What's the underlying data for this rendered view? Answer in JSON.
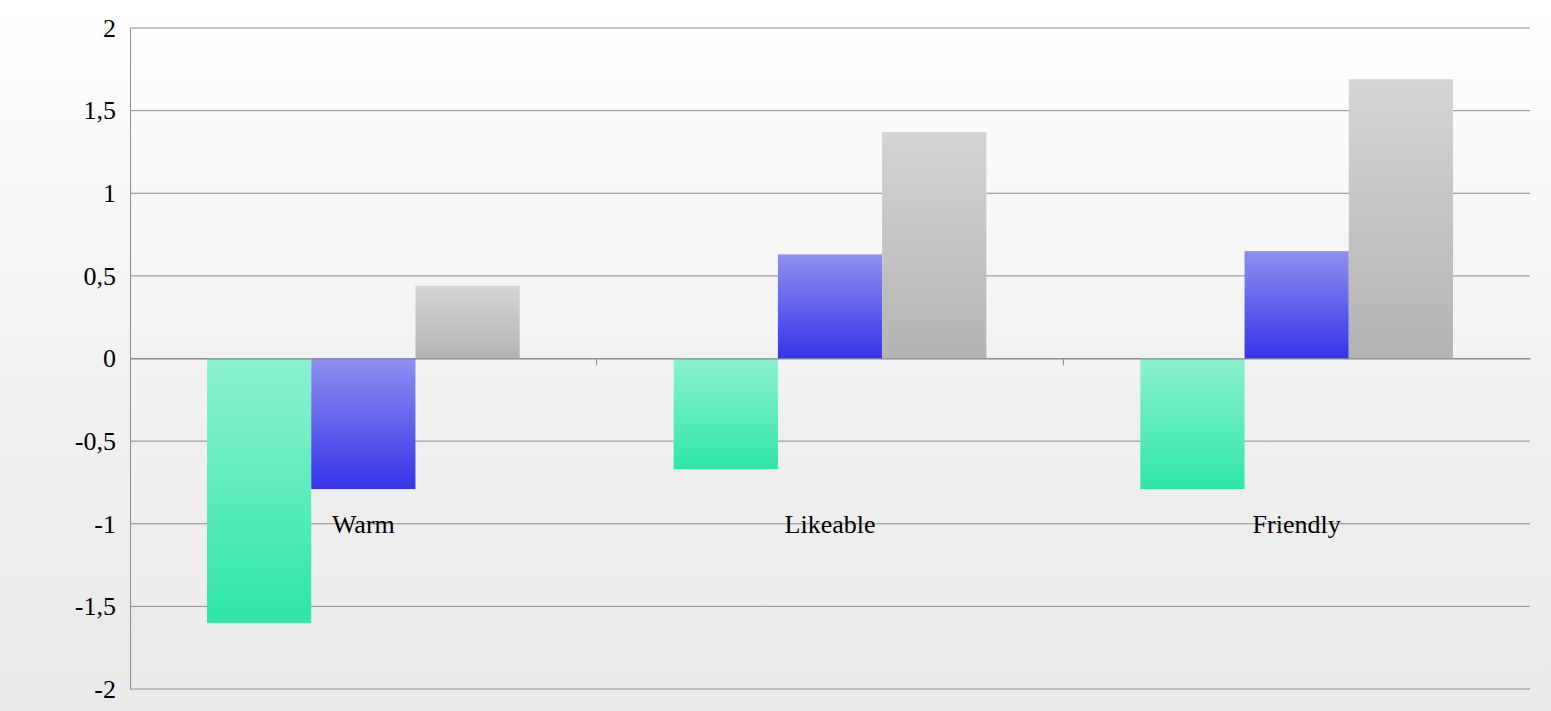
{
  "chart_data": {
    "type": "bar",
    "categories": [
      "Warm",
      "Likeable",
      "Friendly"
    ],
    "series": [
      {
        "color": "#2ee6aa",
        "values": [
          -1.6,
          -0.67,
          -0.79
        ]
      },
      {
        "color": "#3434e8",
        "values": [
          -0.79,
          0.63,
          0.65
        ]
      },
      {
        "color": "#b3b3b3",
        "values": [
          0.44,
          1.37,
          1.69
        ]
      }
    ],
    "ylim": [
      -2,
      2
    ],
    "yticks": [
      -2,
      {
        "value": -1.5,
        "label": "-1,5"
      },
      -1,
      {
        "value": -0.5,
        "label": "-0,5"
      },
      0,
      {
        "value": 0.5,
        "label": "0,5"
      },
      1,
      {
        "value": 1.5,
        "label": "1,5"
      },
      2
    ],
    "grid": true
  }
}
